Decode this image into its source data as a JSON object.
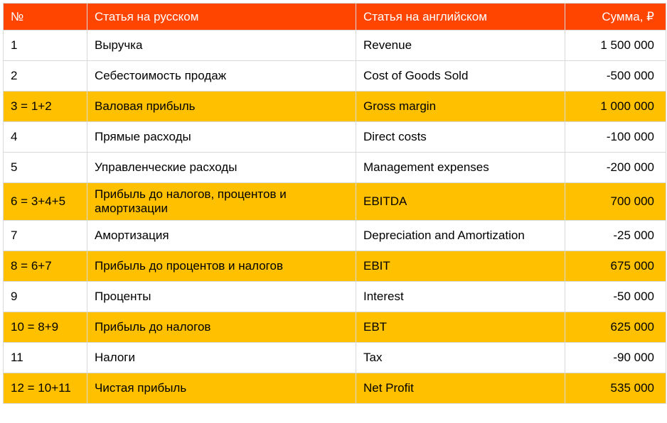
{
  "table": {
    "headers": [
      "№",
      "Статья на русском",
      "Статья на английском",
      "Сумма, ₽"
    ],
    "rows": [
      {
        "num": "1",
        "ru": "Выручка",
        "en": "Revenue",
        "sum": "1 500 000",
        "highlight": false
      },
      {
        "num": "2",
        "ru": "Себестоимость продаж",
        "en": "Cost of Goods Sold",
        "sum": "-500 000",
        "highlight": false
      },
      {
        "num": "3 = 1+2",
        "ru": "Валовая прибыль",
        "en": "Gross margin",
        "sum": "1 000 000",
        "highlight": true
      },
      {
        "num": "4",
        "ru": "Прямые расходы",
        "en": "Direct costs",
        "sum": "-100 000",
        "highlight": false
      },
      {
        "num": "5",
        "ru": "Управленческие расходы",
        "en": "Management expenses",
        "sum": "-200 000",
        "highlight": false
      },
      {
        "num": "6 = 3+4+5",
        "ru": "Прибыль до налогов, процентов и амортизации",
        "en": "EBITDA",
        "sum": "700 000",
        "highlight": true
      },
      {
        "num": "7",
        "ru": "Амортизация",
        "en": "Depreciation and Amortization",
        "sum": "-25 000",
        "highlight": false
      },
      {
        "num": "8 = 6+7",
        "ru": "Прибыль до процентов и налогов",
        "en": "EBIT",
        "sum": "675 000",
        "highlight": true
      },
      {
        "num": "9",
        "ru": "Проценты",
        "en": "Interest",
        "sum": "-50 000",
        "highlight": false
      },
      {
        "num": "10 = 8+9",
        "ru": "Прибыль до налогов",
        "en": "EBT",
        "sum": "625 000",
        "highlight": true
      },
      {
        "num": "11",
        "ru": "Налоги",
        "en": "Tax",
        "sum": "-90 000",
        "highlight": false
      },
      {
        "num": "12 = 10+11",
        "ru": "Чистая прибыль",
        "en": "Net Profit",
        "sum": "535 000",
        "highlight": true
      }
    ],
    "colors": {
      "header_bg": "#ff4500",
      "header_text": "#ffffff",
      "highlight_bg": "#ffc000",
      "row_bg": "#ffffff",
      "border": "#d9d9d9",
      "text": "#000000"
    }
  }
}
